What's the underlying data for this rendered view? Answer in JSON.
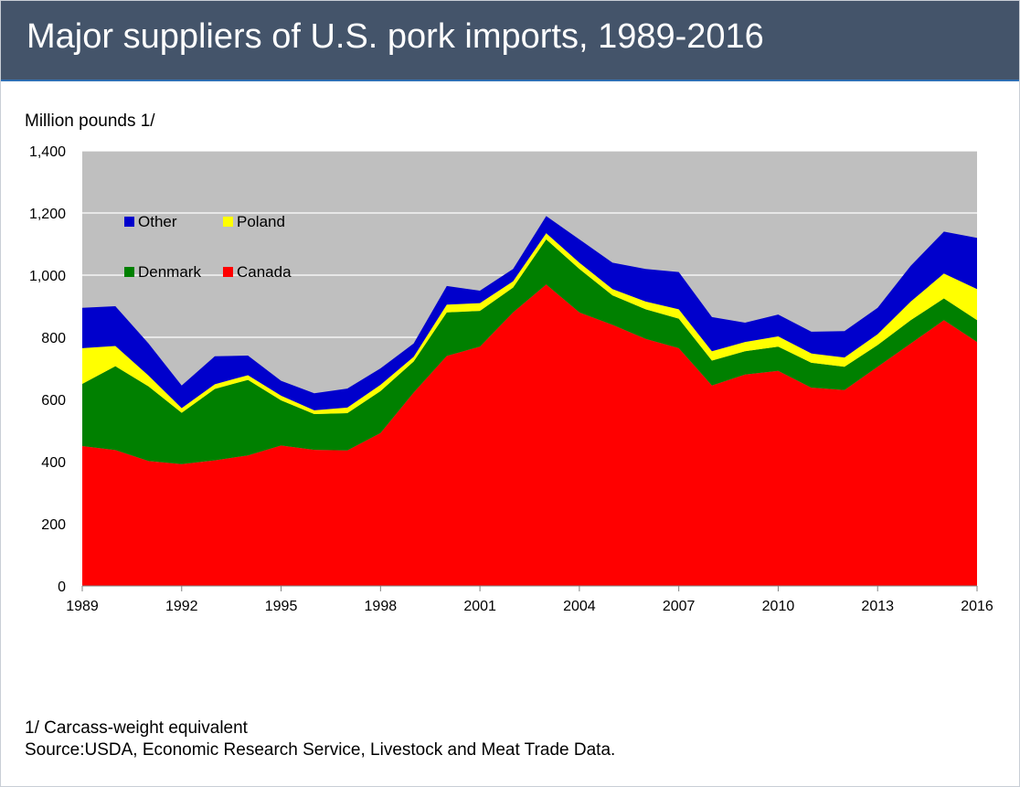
{
  "header": {
    "title": "Major suppliers of U.S. pork imports, 1989-2016"
  },
  "unit_label": "Million pounds 1/",
  "footnotes": {
    "note": "1/ Carcass-weight equivalent",
    "source": "Source:USDA, Economic Research Service, Livestock and Meat Trade Data."
  },
  "chart_data": {
    "type": "area",
    "stacked": true,
    "title": "Major suppliers of U.S. pork imports, 1989-2016",
    "ylabel": "Million pounds 1/",
    "xlabel": "",
    "x": [
      1989,
      1990,
      1991,
      1992,
      1993,
      1994,
      1995,
      1996,
      1997,
      1998,
      1999,
      2000,
      2001,
      2002,
      2003,
      2004,
      2005,
      2006,
      2007,
      2008,
      2009,
      2010,
      2011,
      2012,
      2013,
      2014,
      2015,
      2016
    ],
    "x_ticks": [
      "1989",
      "1992",
      "1995",
      "1998",
      "2001",
      "2004",
      "2007",
      "2010",
      "2013",
      "2016"
    ],
    "y_ticks": [
      "0",
      "200",
      "400",
      "600",
      "800",
      "1,000",
      "1,200",
      "1,400"
    ],
    "ylim": [
      0,
      1400
    ],
    "grid": "horizontal",
    "plot_background": "#bfbfbf",
    "legend_placement": "top-left inside plot",
    "series": [
      {
        "name": "Canada",
        "color": "#ff0000",
        "values": [
          450,
          437,
          402,
          392,
          404,
          420,
          452,
          438,
          436,
          492,
          622,
          740,
          770,
          880,
          970,
          880,
          840,
          795,
          765,
          645,
          680,
          692,
          638,
          630,
          705,
          780,
          855,
          785
        ]
      },
      {
        "name": "Denmark",
        "color": "#008000",
        "values": [
          200,
          270,
          240,
          165,
          230,
          243,
          145,
          115,
          120,
          135,
          100,
          140,
          115,
          80,
          145,
          140,
          95,
          95,
          95,
          80,
          75,
          78,
          80,
          75,
          70,
          75,
          70,
          70
        ]
      },
      {
        "name": "Poland",
        "color": "#ffff00",
        "values": [
          115,
          65,
          35,
          15,
          15,
          15,
          15,
          12,
          18,
          20,
          15,
          25,
          25,
          20,
          20,
          20,
          20,
          25,
          30,
          30,
          30,
          33,
          30,
          30,
          35,
          60,
          80,
          100
        ]
      },
      {
        "name": "Other",
        "color": "#0000cc",
        "values": [
          130,
          128,
          103,
          73,
          90,
          63,
          48,
          55,
          61,
          53,
          43,
          60,
          40,
          40,
          55,
          75,
          85,
          105,
          120,
          110,
          62,
          70,
          70,
          85,
          85,
          115,
          135,
          165
        ]
      }
    ],
    "legend_order": [
      "Other",
      "Poland",
      "Denmark",
      "Canada"
    ]
  }
}
